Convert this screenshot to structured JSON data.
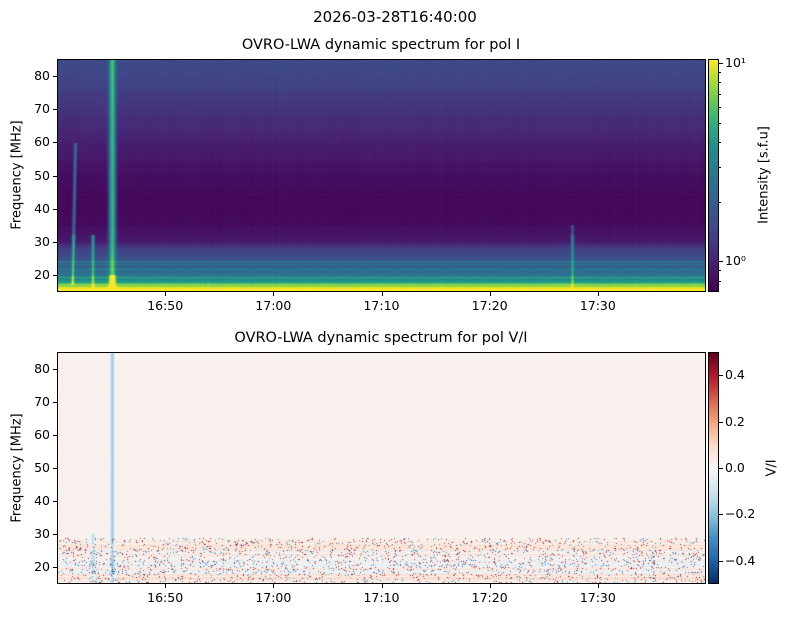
{
  "figure_title": "2026-03-28T16:40:00",
  "chart_data": [
    {
      "type": "heatmap",
      "title": "OVRO-LWA dynamic spectrum for pol I",
      "ylabel": "Frequency [MHz]",
      "xlabel": "",
      "x_range": [
        "16:40",
        "17:40"
      ],
      "xticks": [
        "16:50",
        "17:00",
        "17:10",
        "17:20",
        "17:30"
      ],
      "ylim": [
        15,
        85
      ],
      "yticks": [
        20,
        30,
        40,
        50,
        60,
        70,
        80
      ],
      "colormap": "viridis",
      "color_scale": "log",
      "colorbar": {
        "label": "Intensity [s.f.u]",
        "range": [
          0.7,
          10.5
        ],
        "ticks": [
          {
            "value": 1,
            "label": "10⁰"
          },
          {
            "value": 10,
            "label": "10¹"
          }
        ]
      },
      "background_profile": {
        "freq_mhz": [
          15,
          16,
          17,
          18,
          20,
          22,
          25,
          28,
          30,
          35,
          40,
          50,
          60,
          70,
          80,
          85
        ],
        "intensity": [
          12,
          10,
          6,
          4,
          2.6,
          2.1,
          1.6,
          1.3,
          0.9,
          0.78,
          0.74,
          0.8,
          0.95,
          1.15,
          1.4,
          1.5
        ]
      },
      "bursts": [
        {
          "time": "16:41:24",
          "freq_range": [
            17,
            60
          ],
          "peak": 4,
          "drift": true
        },
        {
          "time": "16:43:12",
          "freq_range": [
            15,
            32
          ],
          "peak": 3.5,
          "drift": false
        },
        {
          "time": "16:45:00",
          "freq_range": [
            15,
            85
          ],
          "peak": 10,
          "drift": false
        },
        {
          "time": "17:27:40",
          "freq_range": [
            15,
            35
          ],
          "peak": 2.5,
          "drift": false
        }
      ]
    },
    {
      "type": "heatmap",
      "title": "OVRO-LWA dynamic spectrum for pol V/I",
      "ylabel": "Frequency [MHz]",
      "xlabel": "",
      "x_range": [
        "16:40",
        "17:40"
      ],
      "xticks": [
        "16:50",
        "17:00",
        "17:10",
        "17:20",
        "17:30"
      ],
      "ylim": [
        15,
        85
      ],
      "yticks": [
        20,
        30,
        40,
        50,
        60,
        70,
        80
      ],
      "colormap": "RdBu_r",
      "color_scale": "linear",
      "colorbar": {
        "label": "V/I",
        "range": [
          -0.5,
          0.5
        ],
        "ticks": [
          {
            "value": -0.4,
            "label": "−0.4"
          },
          {
            "value": -0.2,
            "label": "−0.2"
          },
          {
            "value": 0,
            "label": "0.0"
          },
          {
            "value": 0.2,
            "label": "0.2"
          },
          {
            "value": 0.4,
            "label": "0.4"
          }
        ]
      },
      "background_value": 0.02,
      "noisy_band_mhz": [
        15,
        29
      ],
      "bursts": [
        {
          "time": "16:45:00",
          "freq_range": [
            15,
            85
          ],
          "value": -0.2
        },
        {
          "time": "16:43:12",
          "freq_range": [
            15,
            30
          ],
          "value": -0.15
        }
      ]
    }
  ]
}
